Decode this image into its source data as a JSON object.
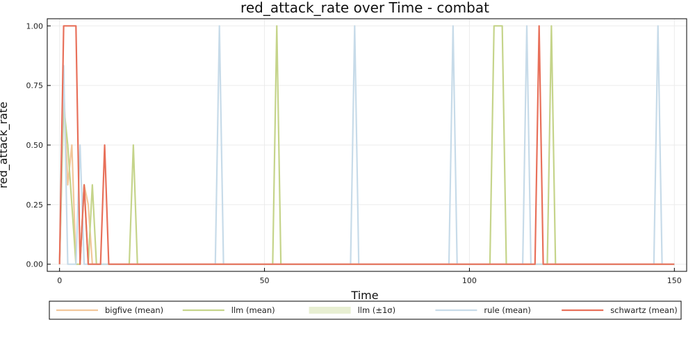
{
  "chart_data": {
    "type": "line",
    "title": "red_attack_rate over Time - combat",
    "xlabel": "Time",
    "ylabel": "red_attack_rate",
    "xlim": [
      -3,
      153
    ],
    "ylim": [
      -0.03,
      1.03
    ],
    "xticks": [
      0,
      50,
      100,
      150
    ],
    "xtick_labels": [
      "0",
      "50",
      "100",
      "150"
    ],
    "yticks": [
      0,
      0.25,
      0.5,
      0.75,
      1.0
    ],
    "ytick_labels": [
      "0.00",
      "0.25",
      "0.50",
      "0.75",
      "1.00"
    ],
    "grid": true,
    "legend_position": "bottom",
    "series": [
      {
        "name": "bigfive (mean)",
        "color": "#f2c79a",
        "x": [
          0,
          1,
          2,
          3,
          4,
          5,
          6,
          7,
          8,
          9,
          10,
          150
        ],
        "y": [
          0,
          0.75,
          0.333,
          0.5,
          0,
          0,
          0.333,
          0.25,
          0,
          0,
          0,
          0
        ]
      },
      {
        "name": "llm (mean)",
        "color": "#c5d48a",
        "x": [
          0,
          1,
          2,
          3,
          4,
          5,
          6,
          7,
          8,
          9,
          17,
          18,
          19,
          52,
          53,
          54,
          105,
          106,
          107,
          108,
          109,
          119,
          120,
          121,
          150
        ],
        "y": [
          0,
          0.667,
          0.5,
          0.25,
          0,
          0,
          0.333,
          0,
          0.333,
          0,
          0,
          0.5,
          0,
          0,
          1.0,
          0,
          0,
          1.0,
          1.0,
          1.0,
          0,
          0,
          1.0,
          0,
          0
        ]
      },
      {
        "name": "rule (mean)",
        "color": "#c7dbe9",
        "x": [
          0,
          1,
          2,
          3,
          4,
          5,
          6,
          38,
          39,
          40,
          71,
          72,
          73,
          95,
          96,
          97,
          113,
          114,
          115,
          145,
          146,
          147,
          150
        ],
        "y": [
          0,
          0.833,
          0,
          0,
          0,
          0.5,
          0,
          0,
          1.0,
          0,
          0,
          1.0,
          0,
          0,
          1.0,
          0,
          0,
          1.0,
          0,
          0,
          1.0,
          0,
          0
        ]
      },
      {
        "name": "schwartz (mean)",
        "color": "#e8705a",
        "x": [
          0,
          1,
          2,
          3,
          4,
          5,
          6,
          7,
          8,
          10,
          11,
          12,
          116,
          117,
          118,
          150
        ],
        "y": [
          0,
          1.0,
          1.0,
          1.0,
          1.0,
          0,
          0.333,
          0,
          0,
          0,
          0.5,
          0,
          0,
          1.0,
          0,
          0
        ]
      }
    ],
    "legend": [
      {
        "label": "bigfive (mean)",
        "kind": "line",
        "color": "#f2c79a"
      },
      {
        "label": "llm (mean)",
        "kind": "line",
        "color": "#c5d48a"
      },
      {
        "label": "llm (±1σ)",
        "kind": "band",
        "color": "#e8efd2"
      },
      {
        "label": "rule (mean)",
        "kind": "line",
        "color": "#c7dbe9"
      },
      {
        "label": "schwartz (mean)",
        "kind": "line",
        "color": "#e8705a"
      }
    ]
  }
}
